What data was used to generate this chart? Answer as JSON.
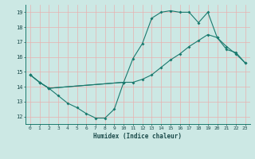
{
  "xlabel": "Humidex (Indice chaleur)",
  "xlim": [
    -0.5,
    23.5
  ],
  "ylim": [
    11.5,
    19.5
  ],
  "xticks": [
    0,
    1,
    2,
    3,
    4,
    5,
    6,
    7,
    8,
    9,
    10,
    11,
    12,
    13,
    14,
    15,
    16,
    17,
    18,
    19,
    20,
    21,
    22,
    23
  ],
  "yticks": [
    12,
    13,
    14,
    15,
    16,
    17,
    18,
    19
  ],
  "bg_color": "#cce8e4",
  "line_color": "#1a7a6e",
  "grid_color": "#e8b0b0",
  "line1_x": [
    0,
    1,
    2,
    3,
    4,
    5,
    6,
    7,
    8,
    9,
    10
  ],
  "line1_y": [
    14.8,
    14.3,
    13.9,
    13.4,
    12.9,
    12.6,
    12.2,
    11.9,
    11.9,
    12.5,
    14.3
  ],
  "line2_x": [
    0,
    1,
    2,
    10,
    11,
    12,
    13,
    14,
    15,
    16,
    17,
    18,
    19,
    20,
    21,
    22,
    23
  ],
  "line2_y": [
    14.8,
    14.3,
    13.9,
    14.3,
    15.9,
    16.9,
    18.6,
    19.0,
    19.1,
    19.0,
    19.0,
    18.3,
    19.0,
    17.3,
    16.5,
    16.3,
    15.6
  ],
  "line3_x": [
    0,
    1,
    2,
    10,
    11,
    12,
    13,
    14,
    15,
    16,
    17,
    18,
    19,
    20,
    21,
    22,
    23
  ],
  "line3_y": [
    14.8,
    14.3,
    13.9,
    14.3,
    14.3,
    14.5,
    14.8,
    15.3,
    15.8,
    16.2,
    16.7,
    17.1,
    17.5,
    17.3,
    16.7,
    16.2,
    15.6
  ]
}
